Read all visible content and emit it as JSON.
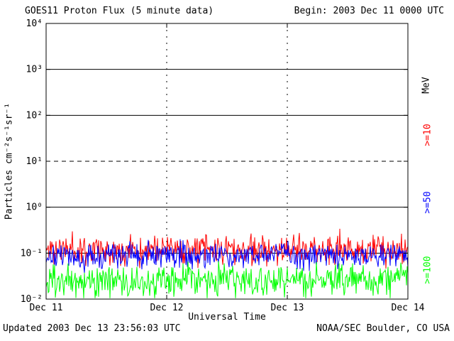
{
  "header": {
    "title": "GOES11 Proton Flux (5 minute data)",
    "begin": "Begin: 2003 Dec 11 0000 UTC"
  },
  "footer": {
    "updated": "Updated 2003 Dec 13 23:56:03 UTC",
    "source": "NOAA/SEC Boulder, CO USA"
  },
  "chart_data": {
    "type": "line",
    "title": "GOES11 Proton Flux (5 minute data)",
    "xlabel": "Universal Time",
    "ylabel": "Particles cm⁻²s⁻¹sr⁻¹",
    "right_axis_label": "MeV",
    "x_ticks": [
      "Dec 11",
      "Dec 12",
      "Dec 13",
      "Dec 14"
    ],
    "x_range_days": 3,
    "y_tick_labels": [
      "10⁴",
      "10³",
      "10²",
      "10¹",
      "10⁰",
      "10⁻¹",
      "10⁻²"
    ],
    "y_tick_exponents": [
      4,
      3,
      2,
      1,
      0,
      -1,
      -2
    ],
    "ylim_exponents": [
      -2,
      4
    ],
    "yscale": "log",
    "solid_gridline_exponents": [
      3,
      2,
      0,
      -1
    ],
    "dashed_gridline_exponent": 1,
    "vertical_gridline_days": [
      1,
      2
    ],
    "series": [
      {
        "name": ">=10",
        "color": "#ff0000",
        "approx_log10_level": -0.92,
        "approx_log10_noise": 0.3,
        "seed": 11
      },
      {
        "name": ">=50",
        "color": "#0000ff",
        "approx_log10_level": -1.06,
        "approx_log10_noise": 0.27,
        "seed": 50
      },
      {
        "name": ">=100",
        "color": "#00ff00",
        "approx_log10_level": -1.58,
        "approx_log10_noise": 0.34,
        "seed": 100
      }
    ]
  }
}
